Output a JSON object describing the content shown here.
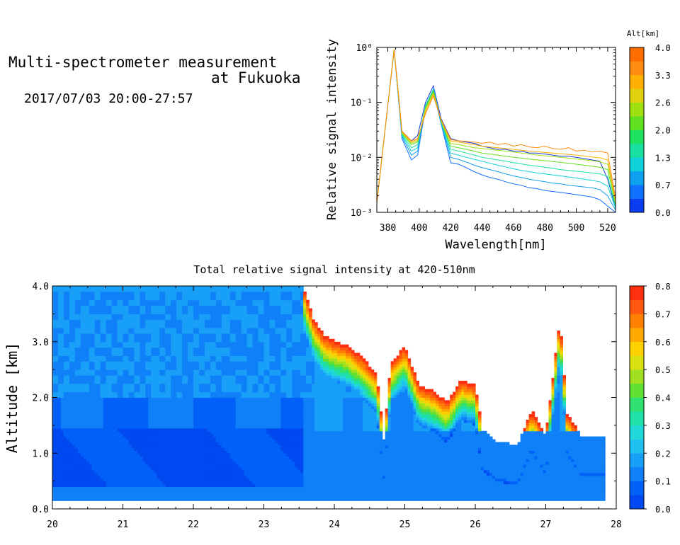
{
  "header": {
    "title_line1": "Multi-spectrometer measurement",
    "title_line2": "at Fukuoka",
    "datetime": "2017/07/03 20:00-27:57"
  },
  "chart_data": [
    {
      "type": "line",
      "xlabel": "Wavelength[nm]",
      "ylabel": "Relative signal intensity",
      "yscale": "log",
      "xlim": [
        373,
        525
      ],
      "ylim": [
        0.001,
        1
      ],
      "x_ticks": [
        380,
        400,
        420,
        440,
        460,
        480,
        500,
        520
      ],
      "y_tick_labels": [
        "10⁻³",
        "10⁻²",
        "10⁻¹",
        "10⁰"
      ],
      "y_tick_values": [
        0.001,
        0.01,
        0.1,
        1
      ],
      "colorbar": {
        "title": "Alt[km]",
        "labels": [
          "0.0",
          "0.7",
          "1.3",
          "2.0",
          "2.6",
          "3.3",
          "4.0"
        ],
        "range": [
          0,
          4
        ],
        "colors": [
          "#0a3cf0",
          "#1070ff",
          "#10a0f0",
          "#10d0d8",
          "#18e0a0",
          "#20e060",
          "#60e020",
          "#a0e010",
          "#e0d010",
          "#ffb000",
          "#ff8c10",
          "#ff6c00"
        ]
      },
      "x": [
        373,
        384,
        389,
        395,
        399,
        404,
        409,
        414,
        420,
        425,
        430,
        435,
        440,
        445,
        450,
        455,
        460,
        465,
        470,
        475,
        480,
        485,
        490,
        495,
        500,
        505,
        510,
        515,
        520,
        525
      ],
      "series": [
        {
          "alt": 0.1,
          "color": "#1a3cd8",
          "values": [
            0.0015,
            0.92,
            0.03,
            0.02,
            0.025,
            0.1,
            0.2,
            0.05,
            0.022,
            0.02,
            0.019,
            0.018,
            0.016,
            0.015,
            0.014,
            0.014,
            0.013,
            0.013,
            0.012,
            0.012,
            0.0115,
            0.011,
            0.0105,
            0.0105,
            0.01,
            0.0095,
            0.009,
            0.0085,
            0.004,
            0.0012
          ]
        },
        {
          "alt": 0.4,
          "color": "#1070ff",
          "values": [
            0.0015,
            0.9,
            0.022,
            0.009,
            0.011,
            0.08,
            0.16,
            0.04,
            0.008,
            0.0075,
            0.0065,
            0.0055,
            0.0048,
            0.0043,
            0.004,
            0.0036,
            0.0033,
            0.0031,
            0.0028,
            0.0027,
            0.0025,
            0.0024,
            0.0023,
            0.0022,
            0.0021,
            0.002,
            0.0019,
            0.0017,
            0.0013,
            0.001
          ]
        },
        {
          "alt": 0.8,
          "color": "#10a0f0",
          "values": [
            0.0015,
            0.91,
            0.024,
            0.011,
            0.013,
            0.085,
            0.17,
            0.042,
            0.01,
            0.0092,
            0.0082,
            0.0072,
            0.0065,
            0.006,
            0.0055,
            0.005,
            0.0046,
            0.0043,
            0.004,
            0.0038,
            0.0036,
            0.0034,
            0.0033,
            0.0031,
            0.003,
            0.0029,
            0.0028,
            0.0026,
            0.002,
            0.0011
          ]
        },
        {
          "alt": 1.2,
          "color": "#10d0d8",
          "values": [
            0.0015,
            0.92,
            0.025,
            0.013,
            0.015,
            0.088,
            0.175,
            0.043,
            0.012,
            0.011,
            0.01,
            0.0092,
            0.0085,
            0.0078,
            0.0072,
            0.0067,
            0.0062,
            0.0058,
            0.0055,
            0.0052,
            0.005,
            0.0048,
            0.0046,
            0.0044,
            0.0042,
            0.004,
            0.0038,
            0.0036,
            0.003,
            0.0012
          ]
        },
        {
          "alt": 1.6,
          "color": "#18e0a0",
          "values": [
            0.0015,
            0.92,
            0.026,
            0.015,
            0.017,
            0.085,
            0.17,
            0.044,
            0.014,
            0.013,
            0.012,
            0.011,
            0.01,
            0.0095,
            0.009,
            0.0085,
            0.008,
            0.0076,
            0.0072,
            0.0069,
            0.0066,
            0.0063,
            0.006,
            0.0058,
            0.0056,
            0.0054,
            0.0052,
            0.005,
            0.0045,
            0.0013
          ]
        },
        {
          "alt": 2.0,
          "color": "#60e020",
          "values": [
            0.0015,
            0.92,
            0.027,
            0.017,
            0.019,
            0.08,
            0.16,
            0.045,
            0.016,
            0.015,
            0.014,
            0.013,
            0.012,
            0.0115,
            0.011,
            0.0105,
            0.01,
            0.0097,
            0.0093,
            0.009,
            0.0087,
            0.0084,
            0.0081,
            0.0078,
            0.0075,
            0.0072,
            0.0069,
            0.0066,
            0.006,
            0.0014
          ]
        },
        {
          "alt": 2.6,
          "color": "#a0e010",
          "values": [
            0.0015,
            0.92,
            0.028,
            0.018,
            0.02,
            0.075,
            0.15,
            0.046,
            0.018,
            0.017,
            0.016,
            0.015,
            0.0145,
            0.014,
            0.0135,
            0.013,
            0.0125,
            0.012,
            0.0115,
            0.011,
            0.0107,
            0.0103,
            0.01,
            0.0097,
            0.0093,
            0.009,
            0.0087,
            0.0083,
            0.0075,
            0.0015
          ]
        },
        {
          "alt": 3.3,
          "color": "#ffb000",
          "values": [
            0.0015,
            0.92,
            0.029,
            0.019,
            0.021,
            0.068,
            0.14,
            0.047,
            0.02,
            0.019,
            0.018,
            0.017,
            0.016,
            0.0155,
            0.015,
            0.0145,
            0.014,
            0.0135,
            0.013,
            0.0127,
            0.0123,
            0.012,
            0.0117,
            0.0113,
            0.011,
            0.0106,
            0.0102,
            0.0098,
            0.009,
            0.0016
          ]
        },
        {
          "alt": 3.8,
          "color": "#ff8c10",
          "values": [
            0.0015,
            0.92,
            0.03,
            0.02,
            0.022,
            0.062,
            0.13,
            0.048,
            0.021,
            0.02,
            0.0195,
            0.019,
            0.018,
            0.019,
            0.017,
            0.018,
            0.016,
            0.017,
            0.0155,
            0.015,
            0.016,
            0.0145,
            0.014,
            0.015,
            0.013,
            0.0135,
            0.0125,
            0.013,
            0.012,
            0.0018
          ]
        }
      ]
    },
    {
      "type": "heatmap",
      "title": "Total relative signal intensity at 420-510nm",
      "ylabel": "Altitude [km]",
      "xlim": [
        20,
        28
      ],
      "ylim": [
        0,
        4
      ],
      "x_tick_labels": [
        "20",
        "21",
        "22",
        "23",
        "24",
        "25",
        "26",
        "27",
        "28"
      ],
      "x_tick_values": [
        20,
        21,
        22,
        23,
        24,
        25,
        26,
        27,
        28
      ],
      "y_tick_labels": [
        "0.0",
        "1.0",
        "2.0",
        "3.0",
        "4.0"
      ],
      "y_tick_values": [
        0,
        1,
        2,
        3,
        4
      ],
      "data_xlim": [
        20.0,
        27.8
      ],
      "data_ylim": [
        0.15,
        4.0
      ],
      "colorbar": {
        "labels": [
          "0.0",
          "0.1",
          "0.2",
          "0.3",
          "0.4",
          "0.5",
          "0.6",
          "0.7",
          "0.8"
        ],
        "range": [
          0,
          0.8
        ],
        "colors": [
          "#0048f0",
          "#0060f8",
          "#1080f8",
          "#18a0f8",
          "#20c0f0",
          "#20d8d8",
          "#20e0a8",
          "#30e070",
          "#60e030",
          "#a0e020",
          "#d8e010",
          "#ffd000",
          "#ffa800",
          "#ff8000",
          "#ff5810",
          "#ff3010"
        ]
      },
      "cloud_base_profile": {
        "x": [
          23.55,
          23.7,
          23.85,
          24.0,
          24.2,
          24.4,
          24.6,
          24.7,
          24.8,
          25.0,
          25.2,
          25.4,
          25.6,
          25.8,
          26.0,
          26.1,
          26.3,
          26.5,
          26.6,
          26.8,
          27.0,
          27.2,
          27.3,
          27.5,
          27.8
        ],
        "base_km": [
          4.0,
          3.4,
          3.1,
          3.0,
          2.9,
          2.7,
          2.4,
          1.25,
          2.6,
          2.9,
          2.2,
          2.1,
          1.9,
          2.3,
          2.2,
          1.4,
          1.2,
          1.15,
          1.12,
          1.75,
          1.3,
          3.4,
          1.7,
          1.3,
          1.3
        ]
      }
    }
  ]
}
